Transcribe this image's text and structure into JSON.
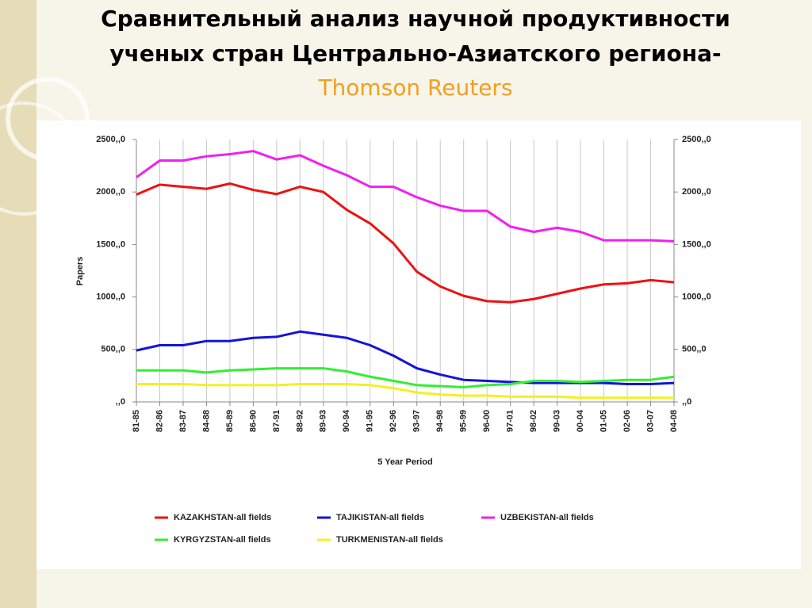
{
  "slide": {
    "title": [
      "Сравнительный анализ научной продуктивности",
      "ученых стран Центрально-Азиатского региона-"
    ],
    "source": "Thomson Reuters"
  },
  "chart_data": {
    "type": "line",
    "y_label": "Papers",
    "x_label": "5 Year Period",
    "categories": [
      "81-85",
      "82-86",
      "83-87",
      "84-88",
      "85-89",
      "86-90",
      "87-91",
      "88-92",
      "89-93",
      "90-94",
      "91-95",
      "92-96",
      "93-97",
      "94-98",
      "95-99",
      "96-00",
      "97-01",
      "98-02",
      "99-03",
      "00-04",
      "01-05",
      "02-06",
      "03-07",
      "04-08"
    ],
    "series": [
      {
        "name": "KAZAKHSTAN-all fields",
        "color": "#ee1111",
        "values": [
          1975,
          2070,
          2050,
          2030,
          2080,
          2020,
          1980,
          2050,
          2000,
          1830,
          1700,
          1510,
          1240,
          1100,
          1010,
          960,
          950,
          980,
          1030,
          1080,
          1120,
          1130,
          1160,
          1140
        ]
      },
      {
        "name": "TAJIKISTAN-all fields",
        "color": "#1414d8",
        "values": [
          490,
          540,
          540,
          580,
          580,
          610,
          620,
          670,
          640,
          610,
          540,
          440,
          320,
          260,
          210,
          200,
          190,
          180,
          180,
          180,
          180,
          170,
          170,
          180
        ]
      },
      {
        "name": "UZBEKISTAN-all fields",
        "color": "#f020f0",
        "values": [
          2140,
          2300,
          2300,
          2340,
          2360,
          2390,
          2310,
          2350,
          2250,
          2160,
          2050,
          2050,
          1950,
          1870,
          1820,
          1820,
          1670,
          1620,
          1660,
          1620,
          1540,
          1540,
          1540,
          1530
        ]
      },
      {
        "name": "KYRGYZSTAN-all fields",
        "color": "#33ee33",
        "values": [
          300,
          300,
          300,
          280,
          300,
          310,
          320,
          320,
          320,
          290,
          240,
          200,
          160,
          150,
          140,
          160,
          170,
          200,
          200,
          190,
          200,
          210,
          210,
          240
        ]
      },
      {
        "name": "TURKMENISTAN-all fields",
        "color": "#f4f020",
        "values": [
          170,
          170,
          170,
          160,
          160,
          160,
          160,
          170,
          170,
          170,
          160,
          130,
          90,
          70,
          60,
          60,
          50,
          50,
          50,
          40,
          40,
          40,
          40,
          40
        ]
      }
    ],
    "ylim": [
      0,
      2500
    ],
    "yticks": [
      {
        "value": 0,
        "label": ",,0"
      },
      {
        "value": 500,
        "label": "500,,0"
      },
      {
        "value": 1000,
        "label": "1000,,0"
      },
      {
        "value": 1500,
        "label": "1500,,0"
      },
      {
        "value": 2000,
        "label": "2000,,0"
      },
      {
        "value": 2500,
        "label": "2500,,0"
      }
    ],
    "y2lim": [
      0,
      2500
    ],
    "y2ticks": [
      {
        "value": 0,
        "label": ",,0"
      },
      {
        "value": 500,
        "label": "500,,0"
      },
      {
        "value": 1000,
        "label": "1000,,0"
      },
      {
        "value": 1500,
        "label": "1500,,0"
      },
      {
        "value": 2000,
        "label": "2000,,0"
      },
      {
        "value": 2500,
        "label": "2500,,0"
      }
    ],
    "grid": true
  }
}
